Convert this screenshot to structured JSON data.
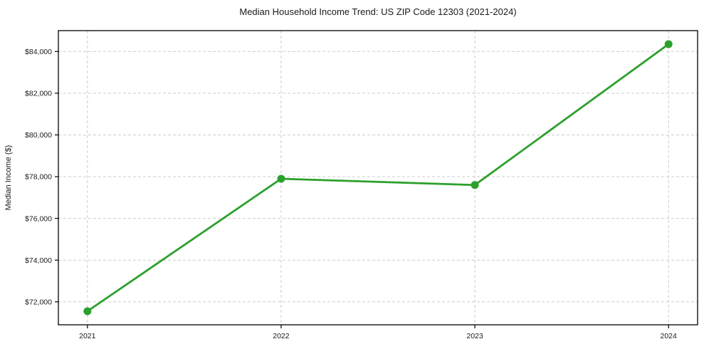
{
  "chart_data": {
    "type": "line",
    "title": "Median Household Income Trend: US ZIP Code 12303 (2021-2024)",
    "xlabel": "",
    "ylabel": "Median Income ($)",
    "x": [
      2021,
      2022,
      2023,
      2024
    ],
    "series": [
      {
        "values": [
          71550,
          77900,
          77600,
          84350
        ]
      }
    ],
    "xticks": {
      "values": [
        2021,
        2022,
        2023,
        2024
      ],
      "labels": [
        "2021",
        "2022",
        "2023",
        "2024"
      ]
    },
    "yticks": {
      "values": [
        72000,
        74000,
        76000,
        78000,
        80000,
        82000,
        84000
      ],
      "labels": [
        "$72,000",
        "$74,000",
        "$76,000",
        "$78,000",
        "$80,000",
        "$82,000",
        "$84,000"
      ]
    },
    "xlim": [
      2020.85,
      2024.15
    ],
    "ylim": [
      70900,
      85000
    ],
    "grid": true,
    "grid_style": "dashed",
    "legend": null,
    "colors": {
      "line": "#2ca02c",
      "marker": "#2ca02c",
      "grid": "#cccccc",
      "spine": "#000000",
      "text": "#1a1a1a",
      "background": "#ffffff"
    }
  }
}
